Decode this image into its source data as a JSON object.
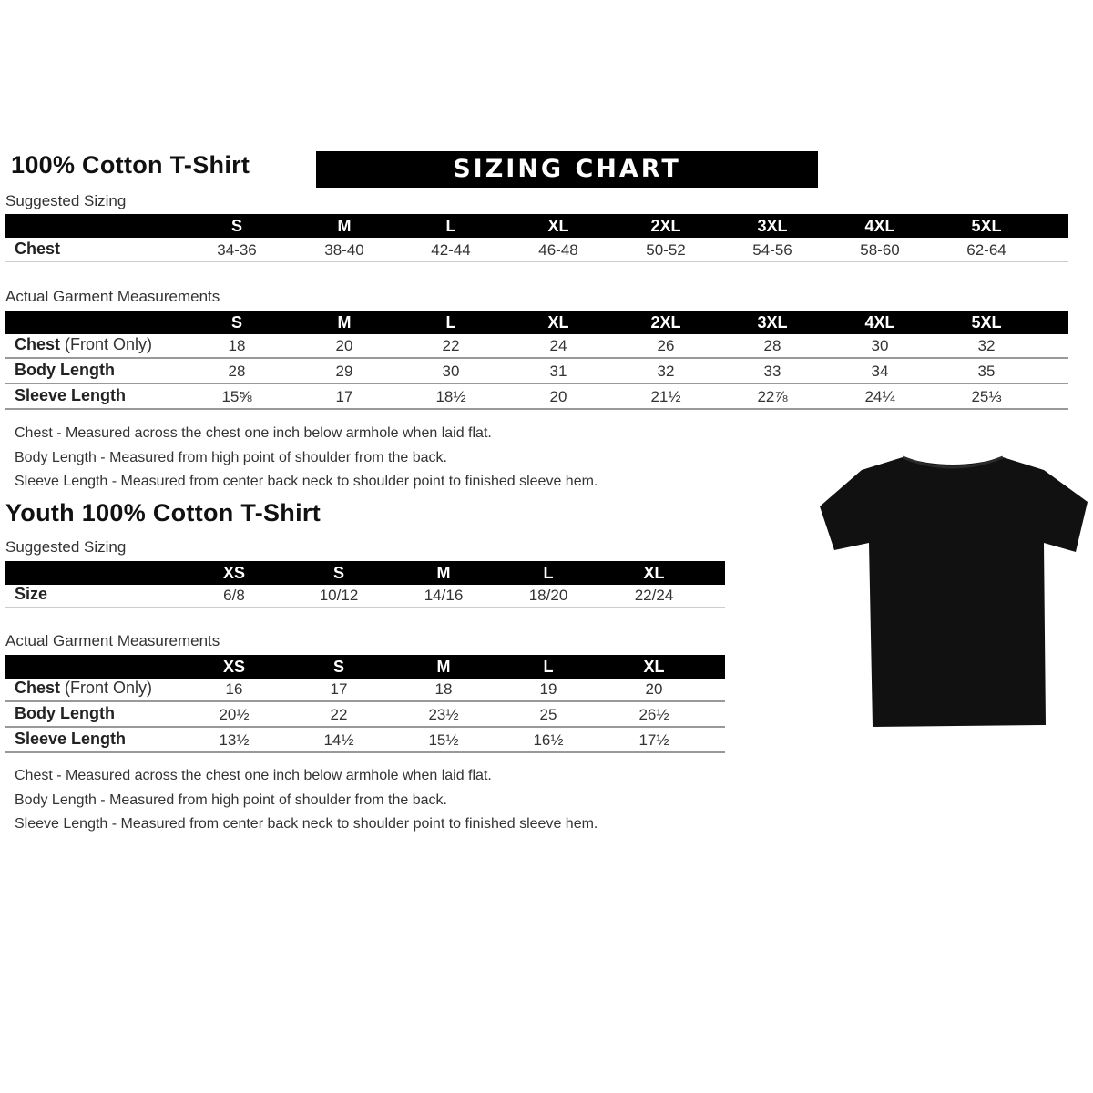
{
  "adult": {
    "title": "100% Cotton T-Shirt",
    "banner": "SIZING CHART",
    "suggested_label": "Suggested Sizing",
    "sizes": [
      "S",
      "M",
      "L",
      "XL",
      "2XL",
      "3XL",
      "4XL",
      "5XL"
    ],
    "suggested_rows": [
      {
        "label": "Chest",
        "values": [
          "34-36",
          "38-40",
          "42-44",
          "46-48",
          "50-52",
          "54-56",
          "58-60",
          "62-64"
        ]
      }
    ],
    "actual_label": "Actual Garment Measurements",
    "actual_rows": [
      {
        "label": "Chest",
        "label_extra": " (Front Only)",
        "values": [
          "18",
          "20",
          "22",
          "24",
          "26",
          "28",
          "30",
          "32"
        ]
      },
      {
        "label": "Body Length",
        "values": [
          "28",
          "29",
          "30",
          "31",
          "32",
          "33",
          "34",
          "35"
        ]
      },
      {
        "label": "Sleeve Length",
        "values": [
          "15⅝",
          "17",
          "18½",
          "20",
          "21½",
          "22⅞",
          "24¼",
          "25⅓"
        ]
      }
    ],
    "notes": [
      "Chest - Measured across the chest one inch below armhole when laid flat.",
      "Body Length - Measured from high point of shoulder from the back.",
      "Sleeve Length - Measured from center back neck to shoulder point to finished sleeve hem."
    ]
  },
  "youth": {
    "title": "Youth 100% Cotton T-Shirt",
    "suggested_label": "Suggested Sizing",
    "sizes": [
      "XS",
      "S",
      "M",
      "L",
      "XL"
    ],
    "suggested_rows": [
      {
        "label": "Size",
        "values": [
          "6/8",
          "10/12",
          "14/16",
          "18/20",
          "22/24"
        ]
      }
    ],
    "actual_label": "Actual Garment Measurements",
    "actual_rows": [
      {
        "label": "Chest",
        "label_extra": " (Front Only)",
        "values": [
          "16",
          "17",
          "18",
          "19",
          "20"
        ]
      },
      {
        "label": "Body Length",
        "values": [
          "20½",
          "22",
          "23½",
          "25",
          "26½"
        ]
      },
      {
        "label": "Sleeve Length",
        "values": [
          "13½",
          "14½",
          "15½",
          "16½",
          "17½"
        ]
      }
    ],
    "notes": [
      "Chest - Measured across the chest one inch below armhole when laid flat.",
      "Body Length - Measured from high point of shoulder from the back.",
      "Sleeve Length - Measured from center back neck to shoulder point to finished sleeve hem."
    ]
  },
  "image": {
    "icon": "black-tshirt",
    "color": "#111111"
  }
}
